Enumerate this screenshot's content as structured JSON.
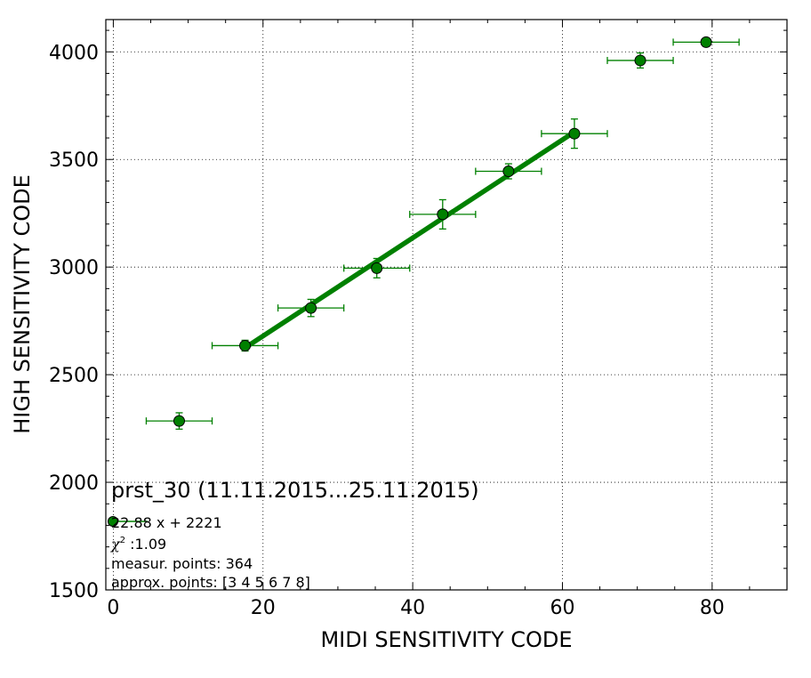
{
  "chart_data": {
    "type": "scatter",
    "xlabel": "MIDI SENSITIVITY CODE",
    "ylabel": "HIGH SENSITIVITY CODE",
    "xlim": [
      -1,
      90
    ],
    "ylim": [
      1500,
      4150
    ],
    "x_ticks": [
      0,
      20,
      40,
      60,
      80
    ],
    "y_ticks": [
      1500,
      2000,
      2500,
      3000,
      3500,
      4000
    ],
    "grid": true,
    "series": [
      {
        "color": "#008000",
        "points": [
          {
            "x": 8.8,
            "y": 2285,
            "xerr": 4.4,
            "yerr": 38
          },
          {
            "x": 17.6,
            "y": 2635,
            "xerr": 4.4,
            "yerr": 25
          },
          {
            "x": 26.4,
            "y": 2810,
            "xerr": 4.4,
            "yerr": 40
          },
          {
            "x": 35.2,
            "y": 2995,
            "xerr": 4.4,
            "yerr": 45
          },
          {
            "x": 44.0,
            "y": 3245,
            "xerr": 4.4,
            "yerr": 68
          },
          {
            "x": 52.8,
            "y": 3445,
            "xerr": 4.4,
            "yerr": 35
          },
          {
            "x": 61.6,
            "y": 3620,
            "xerr": 4.4,
            "yerr": 68
          },
          {
            "x": 70.4,
            "y": 3960,
            "xerr": 4.4,
            "yerr": 35
          },
          {
            "x": 79.2,
            "y": 4045,
            "xerr": 4.4,
            "yerr": 12
          }
        ]
      }
    ],
    "fit_line": {
      "color": "#008000",
      "x": [
        17.6,
        61.6
      ],
      "y": [
        2625,
        3628
      ]
    },
    "annotation": {
      "title": "prst_30 (11.11.2015...25.11.2015)",
      "legend_text": "22.88 x + 2221",
      "chi2_symbol": "χ",
      "chi2_sup": "2",
      "chi2_value": " :1.09",
      "measur_points": "measur. points: 364",
      "approx_points": "approx. points: [3 4 5 6 7 8]"
    }
  }
}
